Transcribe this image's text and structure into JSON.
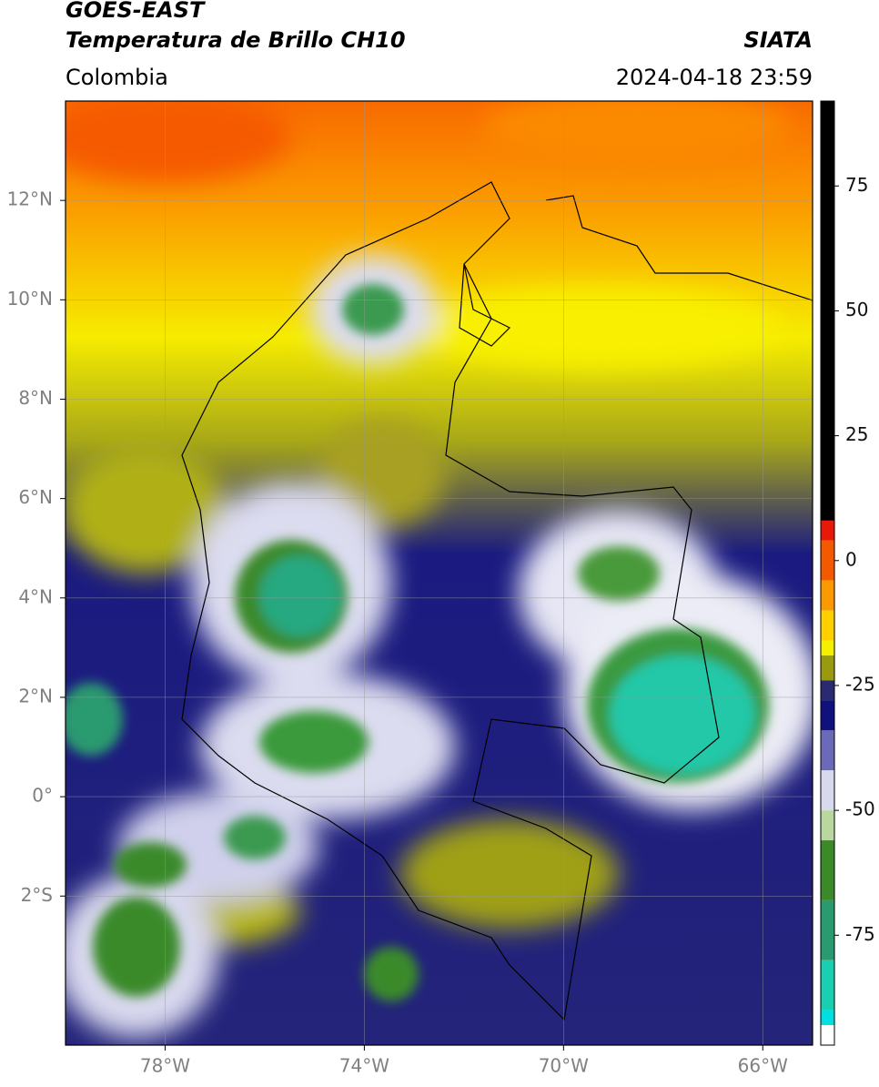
{
  "header": {
    "satellite": "GOES-EAST",
    "product": "Temperatura de Brillo CH10",
    "source": "SIATA",
    "region": "Colombia",
    "datetime": "2024-04-18 23:59"
  },
  "map": {
    "xlim": [
      -80,
      -65
    ],
    "ylim": [
      -5,
      14
    ],
    "xticks": [
      {
        "value": -78,
        "label": "78°W"
      },
      {
        "value": -74,
        "label": "74°W"
      },
      {
        "value": -70,
        "label": "70°W"
      },
      {
        "value": -66,
        "label": "66°W"
      }
    ],
    "yticks": [
      {
        "value": 12,
        "label": "12°N"
      },
      {
        "value": 10,
        "label": "10°N"
      },
      {
        "value": 8,
        "label": "8°N"
      },
      {
        "value": 6,
        "label": "6°N"
      },
      {
        "value": 4,
        "label": "4°N"
      },
      {
        "value": 2,
        "label": "2°N"
      },
      {
        "value": 0,
        "label": "0°"
      },
      {
        "value": -2,
        "label": "2°S"
      }
    ],
    "grid": true
  },
  "colorbar": {
    "lim": [
      -97,
      92
    ],
    "ticks": [
      75,
      50,
      25,
      0,
      -25,
      -50,
      -75
    ],
    "segments": [
      {
        "from": 92,
        "to": 8,
        "color": "#000000"
      },
      {
        "from": 8,
        "to": 4,
        "color": "#e8190a"
      },
      {
        "from": 4,
        "to": -4,
        "color": "#f35a00"
      },
      {
        "from": -4,
        "to": -10,
        "color": "#fb9a00"
      },
      {
        "from": -10,
        "to": -16,
        "color": "#ffd000"
      },
      {
        "from": -16,
        "to": -19,
        "color": "#f5f000"
      },
      {
        "from": -19,
        "to": -24,
        "color": "#9a9a10"
      },
      {
        "from": -24,
        "to": -28,
        "color": "#2a2a70"
      },
      {
        "from": -28,
        "to": -34,
        "color": "#10107e"
      },
      {
        "from": -34,
        "to": -42,
        "color": "#6a6ab8"
      },
      {
        "from": -42,
        "to": -50,
        "color": "#d8d8ee"
      },
      {
        "from": -50,
        "to": -56,
        "color": "#b8d8a0"
      },
      {
        "from": -56,
        "to": -68,
        "color": "#3a8a2a"
      },
      {
        "from": -68,
        "to": -80,
        "color": "#2a9a70"
      },
      {
        "from": -80,
        "to": -90,
        "color": "#18d0b0"
      },
      {
        "from": -90,
        "to": -93,
        "color": "#00e0e0"
      },
      {
        "from": -93,
        "to": -97,
        "color": "#ffffff"
      }
    ]
  }
}
